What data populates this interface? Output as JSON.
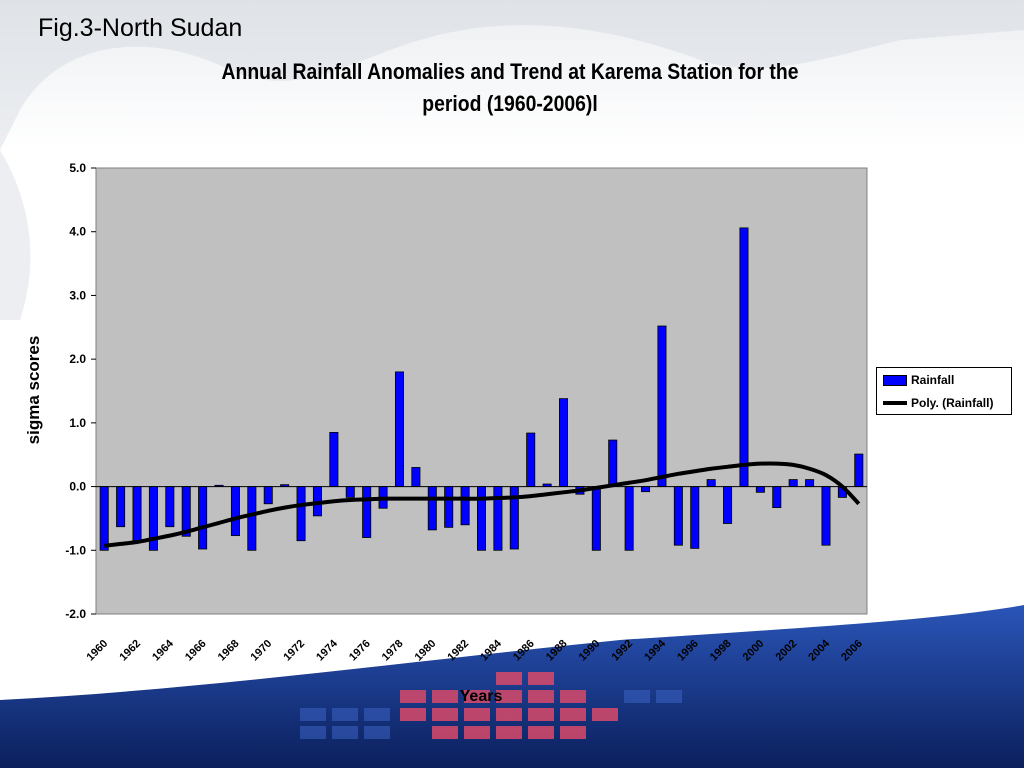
{
  "slide": {
    "figure_label": "Fig.3-North Sudan",
    "title_line1": "Annual Rainfall Anomalies and Trend at Karema Station for the",
    "title_line2": "period (1960-2006)l"
  },
  "colors": {
    "bar_fill": "#0000ff",
    "plot_background": "#c0c0c0",
    "trend_line": "#000000",
    "footer_band": "#1a3a8a",
    "footer_tiles": "#d94a6a"
  },
  "chart_data": {
    "type": "bar",
    "title": "Annual Rainfall Anomalies and Trend at Karema Station for the period (1960-2006)l",
    "xlabel": "Years",
    "ylabel": "sigma scores",
    "ylim": [
      -2.0,
      5.0
    ],
    "y_ticks": [
      "5.0",
      "4.0",
      "3.0",
      "2.0",
      "1.0",
      "0.0",
      "-1.0",
      "-2.0"
    ],
    "x_tick_labels": [
      "1960",
      "1962",
      "1964",
      "1966",
      "1968",
      "1970",
      "1972",
      "1974",
      "1976",
      "1978",
      "1980",
      "1982",
      "1984",
      "1986",
      "1988",
      "1990",
      "1992",
      "1994",
      "1996",
      "1998",
      "2000",
      "2002",
      "2004",
      "2006"
    ],
    "categories": [
      1960,
      1961,
      1962,
      1963,
      1964,
      1965,
      1966,
      1967,
      1968,
      1969,
      1970,
      1971,
      1972,
      1973,
      1974,
      1975,
      1976,
      1977,
      1978,
      1979,
      1980,
      1981,
      1982,
      1983,
      1984,
      1985,
      1986,
      1987,
      1988,
      1989,
      1990,
      1991,
      1992,
      1993,
      1994,
      1995,
      1996,
      1997,
      1998,
      1999,
      2000,
      2001,
      2002,
      2003,
      2004,
      2005,
      2006
    ],
    "series": [
      {
        "name": "Rainfall",
        "type": "bar",
        "values": [
          -1.0,
          -0.63,
          -0.85,
          -1.0,
          -0.63,
          -0.78,
          -0.98,
          0.02,
          -0.77,
          -1.0,
          -0.27,
          0.03,
          -0.85,
          -0.46,
          0.85,
          -0.17,
          -0.8,
          -0.34,
          1.8,
          0.3,
          -0.68,
          -0.64,
          -0.6,
          -1.0,
          -1.0,
          -0.98,
          0.84,
          0.04,
          1.38,
          -0.12,
          -1.0,
          0.73,
          -1.0,
          -0.08,
          2.52,
          -0.92,
          -0.97,
          0.11,
          -0.58,
          4.06,
          -0.09,
          -0.33,
          0.11,
          0.11,
          -0.92,
          -0.17,
          0.51
        ]
      },
      {
        "name": "Poly. (Rainfall)",
        "type": "line",
        "values": [
          -0.93,
          -0.9,
          -0.87,
          -0.82,
          -0.77,
          -0.71,
          -0.64,
          -0.57,
          -0.5,
          -0.44,
          -0.38,
          -0.33,
          -0.29,
          -0.26,
          -0.23,
          -0.21,
          -0.2,
          -0.19,
          -0.19,
          -0.19,
          -0.19,
          -0.19,
          -0.19,
          -0.19,
          -0.18,
          -0.17,
          -0.15,
          -0.12,
          -0.09,
          -0.06,
          -0.02,
          0.02,
          0.06,
          0.1,
          0.15,
          0.2,
          0.24,
          0.28,
          0.31,
          0.34,
          0.36,
          0.36,
          0.34,
          0.28,
          0.18,
          0.0,
          -0.27
        ]
      }
    ],
    "legend": {
      "position": "right",
      "entries": [
        "Rainfall",
        "Poly. (Rainfall)"
      ]
    },
    "grid": false
  }
}
